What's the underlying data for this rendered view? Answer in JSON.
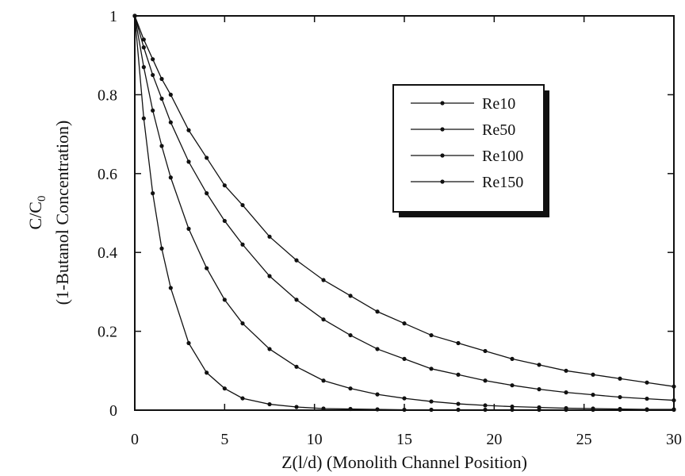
{
  "chart_data": {
    "type": "line",
    "xlabel": "Z(l/d) (Monolith Channel Position)",
    "ylabel_line1": "C/C",
    "ylabel_sub": "0",
    "ylabel_line2": "(1-Butanol Concentration)",
    "xlim": [
      0,
      30
    ],
    "ylim": [
      0,
      1
    ],
    "x_ticks": [
      0,
      5,
      10,
      15,
      20,
      25,
      30
    ],
    "y_ticks": [
      0,
      0.2,
      0.4,
      0.6,
      0.8,
      1
    ],
    "x_tick_labels": [
      "0",
      "5",
      "10",
      "15",
      "20",
      "25",
      "30"
    ],
    "y_tick_labels": [
      "0",
      "0.2",
      "0.4",
      "0.6",
      "0.8",
      "1"
    ],
    "grid": false,
    "legend_position": "top-right",
    "x": [
      0,
      0.5,
      1,
      1.5,
      2,
      3,
      4,
      5,
      6,
      7.5,
      9,
      10.5,
      12,
      13.5,
      15,
      16.5,
      18,
      19.5,
      21,
      22.5,
      24,
      25.5,
      27,
      28.5,
      30
    ],
    "series": [
      {
        "name": "Re10",
        "values": [
          1,
          0.74,
          0.55,
          0.41,
          0.31,
          0.17,
          0.095,
          0.055,
          0.03,
          0.015,
          0.008,
          0.004,
          0.003,
          0.002,
          0.001,
          0.001,
          0.001,
          0.001,
          0.001,
          0.001,
          0.001,
          0.001,
          0.001,
          0.001,
          0.001
        ]
      },
      {
        "name": "Re50",
        "values": [
          1,
          0.87,
          0.76,
          0.67,
          0.59,
          0.46,
          0.36,
          0.28,
          0.22,
          0.155,
          0.11,
          0.075,
          0.055,
          0.04,
          0.03,
          0.022,
          0.016,
          0.012,
          0.009,
          0.007,
          0.005,
          0.004,
          0.003,
          0.002,
          0.002
        ]
      },
      {
        "name": "Re100",
        "values": [
          1,
          0.92,
          0.85,
          0.79,
          0.73,
          0.63,
          0.55,
          0.48,
          0.42,
          0.34,
          0.28,
          0.23,
          0.19,
          0.155,
          0.13,
          0.105,
          0.09,
          0.075,
          0.063,
          0.053,
          0.045,
          0.039,
          0.033,
          0.029,
          0.025
        ]
      },
      {
        "name": "Re150",
        "values": [
          1,
          0.94,
          0.89,
          0.84,
          0.8,
          0.71,
          0.64,
          0.57,
          0.52,
          0.44,
          0.38,
          0.33,
          0.29,
          0.25,
          0.22,
          0.19,
          0.17,
          0.15,
          0.13,
          0.115,
          0.1,
          0.09,
          0.08,
          0.07,
          0.06
        ]
      }
    ]
  }
}
